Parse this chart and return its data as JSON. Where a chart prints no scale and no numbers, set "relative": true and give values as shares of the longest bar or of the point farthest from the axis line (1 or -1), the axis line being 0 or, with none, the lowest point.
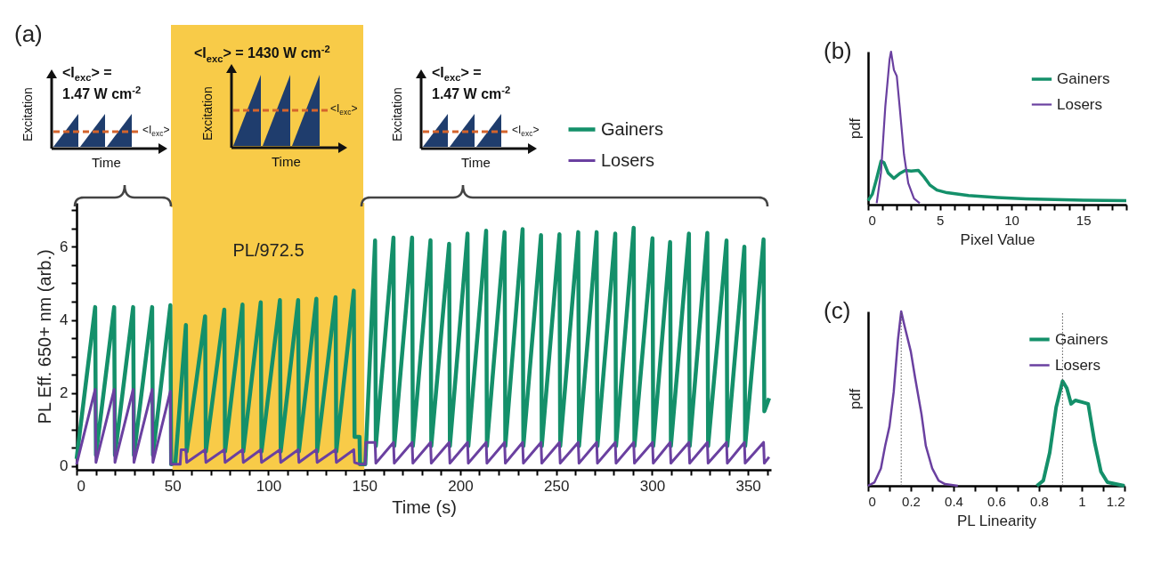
{
  "chart_data": [
    {
      "type": "line",
      "title": "(a)",
      "xlabel": "Time (s)",
      "ylabel": "PL Eff. 650+ nm (arb.)",
      "xlim": [
        0,
        362
      ],
      "ylim": [
        -0.1,
        7.2
      ],
      "xticks": [
        0,
        {
          "value": 10,
          "label": null
        },
        {
          "value": 20,
          "label": null
        },
        {
          "value": 30,
          "label": null
        },
        {
          "value": 40,
          "label": null
        },
        50,
        {
          "value": 60,
          "label": null
        },
        {
          "value": 70,
          "label": null
        },
        {
          "value": 80,
          "label": null
        },
        {
          "value": 90,
          "label": null
        },
        100,
        {
          "value": 110,
          "label": null
        },
        {
          "value": 120,
          "label": null
        },
        {
          "value": 130,
          "label": null
        },
        {
          "value": 140,
          "label": null
        },
        150,
        {
          "value": 160,
          "label": null
        },
        {
          "value": 170,
          "label": null
        },
        {
          "value": 180,
          "label": null
        },
        {
          "value": 190,
          "label": null
        },
        200,
        {
          "value": 210,
          "label": null
        },
        {
          "value": 220,
          "label": null
        },
        {
          "value": 230,
          "label": null
        },
        {
          "value": 240,
          "label": null
        },
        250,
        {
          "value": 260,
          "label": null
        },
        {
          "value": 270,
          "label": null
        },
        {
          "value": 280,
          "label": null
        },
        {
          "value": 290,
          "label": null
        },
        300,
        {
          "value": 310,
          "label": null
        },
        {
          "value": 320,
          "label": null
        },
        {
          "value": 330,
          "label": null
        },
        {
          "value": 340,
          "label": null
        },
        350,
        {
          "value": 360,
          "label": null
        }
      ],
      "yticks": [
        0,
        {
          "value": 0.5,
          "label": null
        },
        {
          "value": 1,
          "label": null
        },
        {
          "value": 1.5,
          "label": null
        },
        2,
        {
          "value": 2.5,
          "label": null
        },
        {
          "value": 3,
          "label": null
        },
        {
          "value": 3.5,
          "label": null
        },
        4,
        {
          "value": 4.5,
          "label": null
        },
        {
          "value": 5,
          "label": null
        },
        {
          "value": 5.5,
          "label": null
        },
        6,
        {
          "value": 6.5,
          "label": null
        },
        {
          "value": 7,
          "label": null
        }
      ],
      "legend": "top right",
      "bands": [
        {
          "axis": "x",
          "from": 50,
          "to": 150,
          "label": "PL/972.5",
          "color": "#f8cb48"
        }
      ],
      "annotations": [
        "<I$_{exc}$> =",
        "1.47 W cm$^{-2}$",
        "Excitation",
        "Time",
        "<I$_{exc}$>",
        "<I$_{exc}$> = 1430 W cm$^{-2}$",
        "Excitation",
        "Time",
        "<I$_{exc}$>",
        "<I$_{exc}$> =",
        "1.47 W cm$^{-2}$",
        "Excitation",
        "Time",
        "<I$_{exc}$>"
      ],
      "series": [
        {
          "name": "Gainers",
          "color": "#14906a",
          "x": [
            0,
            9.7,
            10.1,
            19.6,
            20,
            29.5,
            29.9,
            39.4,
            39.8,
            48.9,
            49.3,
            51.5,
            57,
            57.4,
            67,
            67.4,
            77,
            77.4,
            86.5,
            86.9,
            96,
            96.4,
            106,
            106.4,
            115.5,
            115.9,
            125,
            125.4,
            135,
            135.4,
            144.5,
            144.9,
            147.5,
            147.8,
            150.5,
            155.6,
            156,
            165.2,
            165.6,
            174.9,
            175.3,
            184.5,
            184.9,
            194.2,
            194.6,
            203.8,
            204.2,
            213.5,
            213.9,
            223.1,
            223.5,
            232.5,
            232.9,
            242.1,
            242.5,
            251.7,
            252.1,
            261.5,
            261.9,
            271.1,
            271.5,
            280.8,
            281.2,
            290.4,
            290.8,
            300.2,
            300.6,
            309.4,
            309.8,
            319.2,
            319.6,
            328.8,
            329.2,
            338.8,
            339.2,
            348.1,
            348.5,
            358.1,
            358.5,
            361
          ],
          "values": [
            0.2,
            4.35,
            0.3,
            4.35,
            0.3,
            4.35,
            0.3,
            4.35,
            0.3,
            4.4,
            0.05,
            0.1,
            3.86,
            0.4,
            4.1,
            0.4,
            4.28,
            0.4,
            4.42,
            0.4,
            4.48,
            0.4,
            4.54,
            0.4,
            4.54,
            0.4,
            4.58,
            0.4,
            4.62,
            0.4,
            4.8,
            0.8,
            0.8,
            0.05,
            0.05,
            6.17,
            0.55,
            6.25,
            0.55,
            6.25,
            0.55,
            6.18,
            0.55,
            6.08,
            0.55,
            6.36,
            0.55,
            6.44,
            0.55,
            6.4,
            0.55,
            6.48,
            0.55,
            6.32,
            0.55,
            6.34,
            0.55,
            6.4,
            0.55,
            6.4,
            0.55,
            6.36,
            0.55,
            6.52,
            0.55,
            6.23,
            0.55,
            6.13,
            0.55,
            6.36,
            0.55,
            6.38,
            0.55,
            6.17,
            0.55,
            6,
            0.55,
            6.2,
            1.5,
            1.86
          ]
        },
        {
          "name": "Losers",
          "color": "#6a40a0",
          "x": [
            0,
            9.7,
            10.1,
            19.6,
            20,
            29.5,
            29.9,
            39.4,
            39.8,
            48.9,
            49.1,
            54,
            54.5,
            57,
            57.4,
            67,
            67.4,
            77,
            77.4,
            86.5,
            86.9,
            96,
            96.4,
            106,
            106.4,
            115.5,
            115.9,
            125,
            125.4,
            135,
            135.4,
            144.5,
            144.9,
            147.8,
            150.5,
            150.8,
            155.6,
            156,
            165.2,
            165.6,
            174.9,
            175.3,
            184.5,
            184.9,
            194.2,
            194.6,
            203.8,
            204.2,
            213.5,
            213.9,
            223.1,
            223.5,
            232.5,
            232.9,
            242.1,
            242.5,
            251.7,
            252.1,
            261.5,
            261.9,
            271.1,
            271.5,
            280.8,
            281.2,
            290.4,
            290.8,
            300.2,
            300.6,
            309.4,
            309.8,
            319.2,
            319.6,
            328.8,
            329.2,
            338.8,
            339.2,
            348.1,
            348.5,
            358.1,
            358.5,
            361
          ],
          "values": [
            0.05,
            2.1,
            0.1,
            2.1,
            0.1,
            2.1,
            0.1,
            2.1,
            0.1,
            2.05,
            0.05,
            0.05,
            0.45,
            0.45,
            0.1,
            0.45,
            0.1,
            0.45,
            0.1,
            0.45,
            0.1,
            0.45,
            0.1,
            0.45,
            0.1,
            0.45,
            0.1,
            0.45,
            0.1,
            0.45,
            0.1,
            0.45,
            0.1,
            0.05,
            0.05,
            0.65,
            0.65,
            0.08,
            0.65,
            0.08,
            0.65,
            0.08,
            0.65,
            0.08,
            0.65,
            0.08,
            0.65,
            0.08,
            0.65,
            0.08,
            0.65,
            0.08,
            0.65,
            0.08,
            0.65,
            0.08,
            0.65,
            0.08,
            0.65,
            0.08,
            0.65,
            0.08,
            0.65,
            0.08,
            0.65,
            0.08,
            0.65,
            0.08,
            0.65,
            0.08,
            0.65,
            0.08,
            0.65,
            0.08,
            0.65,
            0.08,
            0.65,
            0.08,
            0.65,
            0.08,
            0.25
          ]
        }
      ]
    },
    {
      "type": "line",
      "title": "(b)",
      "xlabel": "Pixel Value",
      "ylabel": "pdf",
      "relative": true,
      "xlim": [
        0,
        18
      ],
      "xticks": [
        0,
        {
          "value": 1,
          "label": null
        },
        {
          "value": 2,
          "label": null
        },
        {
          "value": 3,
          "label": null
        },
        {
          "value": 4,
          "label": null
        },
        5,
        {
          "value": 6,
          "label": null
        },
        {
          "value": 7,
          "label": null
        },
        {
          "value": 8,
          "label": null
        },
        {
          "value": 9,
          "label": null
        },
        10,
        {
          "value": 11,
          "label": null
        },
        {
          "value": 12,
          "label": null
        },
        {
          "value": 13,
          "label": null
        },
        {
          "value": 14,
          "label": null
        },
        15,
        {
          "value": 16,
          "label": null
        },
        {
          "value": 17,
          "label": null
        },
        {
          "value": 18,
          "label": null
        }
      ],
      "legend": "top right",
      "series": [
        {
          "name": "Gainers",
          "color": "#14906a",
          "x": [
            0,
            0.3,
            0.6,
            0.9,
            1.1,
            1.4,
            1.8,
            2.2,
            2.6,
            3,
            3.5,
            3.9,
            4.3,
            4.8,
            5.5,
            7,
            9,
            11,
            13,
            15,
            18
          ],
          "values": [
            0.026,
            0.069,
            0.172,
            0.284,
            0.276,
            0.207,
            0.172,
            0.203,
            0.224,
            0.219,
            0.224,
            0.181,
            0.129,
            0.095,
            0.078,
            0.06,
            0.047,
            0.038,
            0.033,
            0.029,
            0.026
          ]
        },
        {
          "name": "Losers",
          "color": "#6a40a0",
          "x": [
            0.6,
            0.9,
            1.2,
            1.5,
            1.6,
            1.8,
            2,
            2.2,
            2.5,
            2.8,
            3.2,
            3.6
          ],
          "values": [
            0.01,
            0.21,
            0.64,
            0.95,
            1,
            0.88,
            0.84,
            0.64,
            0.33,
            0.14,
            0.04,
            0.01
          ]
        }
      ]
    },
    {
      "type": "line",
      "title": "(c)",
      "xlabel": "PL Linearity",
      "ylabel": "pdf",
      "relative": true,
      "xlim": [
        0,
        1.2
      ],
      "xticks": [
        0,
        {
          "value": 0.1,
          "label": null
        },
        0.2,
        {
          "value": 0.3,
          "label": null
        },
        0.4,
        {
          "value": 0.5,
          "label": null
        },
        0.6,
        {
          "value": 0.7,
          "label": null
        },
        0.8,
        {
          "value": 0.9,
          "label": null
        },
        1,
        {
          "value": 1.1,
          "label": null
        },
        1.2
      ],
      "legend": "top right",
      "ref_lines": [
        {
          "axis": "x",
          "value": 0.155,
          "label": null,
          "color": "#555555",
          "line_style": "dotted"
        },
        {
          "axis": "x",
          "value": 0.91,
          "label": null,
          "color": "#555555",
          "line_style": "dotted"
        }
      ],
      "series": [
        {
          "name": "Gainers",
          "color": "#14906a",
          "x": [
            0.79,
            0.82,
            0.85,
            0.88,
            0.91,
            0.93,
            0.95,
            0.97,
            1,
            1.03,
            1.06,
            1.09,
            1.12,
            1.2
          ],
          "values": [
            0,
            0.03,
            0.19,
            0.45,
            0.6,
            0.56,
            0.47,
            0.49,
            0.48,
            0.47,
            0.25,
            0.08,
            0.02,
            0
          ]
        },
        {
          "name": "Losers",
          "color": "#6a40a0",
          "x": [
            0,
            0.03,
            0.06,
            0.08,
            0.1,
            0.12,
            0.14,
            0.155,
            0.17,
            0.2,
            0.22,
            0.25,
            0.27,
            0.3,
            0.33,
            0.36,
            0.42
          ],
          "values": [
            0,
            0.02,
            0.1,
            0.23,
            0.34,
            0.54,
            0.84,
            1,
            0.92,
            0.77,
            0.62,
            0.41,
            0.23,
            0.1,
            0.03,
            0.01,
            0
          ]
        }
      ]
    }
  ]
}
